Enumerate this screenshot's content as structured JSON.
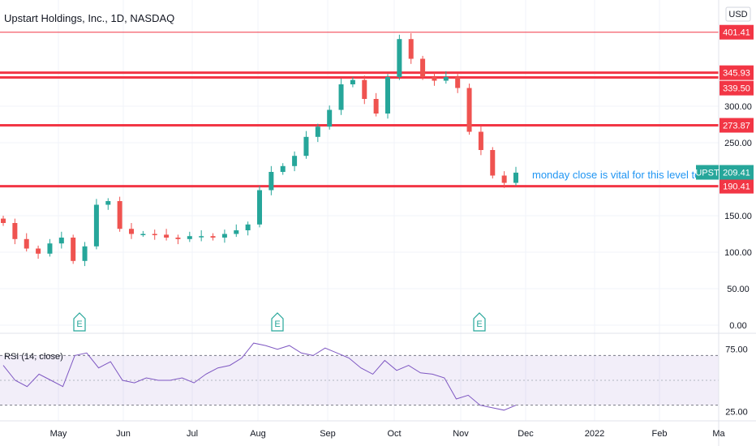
{
  "header": {
    "title": "Upstart Holdings, Inc., 1D, NASDAQ",
    "currency": "USD"
  },
  "colors": {
    "up": "#26a69a",
    "down": "#ef5350",
    "level": "#f23645",
    "rsi": "#7e57c2",
    "annotation": "#2196f3"
  },
  "chart_data": [
    {
      "type": "candlestick",
      "title": "Upstart Holdings, Inc., 1D, NASDAQ",
      "ylim": [
        0,
        430
      ],
      "y_ticks": [
        "0.00",
        "50.00",
        "100.00",
        "150.00",
        "250.00",
        "300.00"
      ],
      "x_ticks": [
        "May",
        "Jun",
        "Jul",
        "Aug",
        "Sep",
        "Oct",
        "Nov",
        "Dec",
        "2022",
        "Feb",
        "Ma"
      ],
      "grid": true,
      "ticker": "UPST",
      "last_price": "209.41",
      "levels": [
        {
          "value": 401.41,
          "label": "401.41",
          "thickness": "thin"
        },
        {
          "value": 345.93,
          "label": "345.93",
          "thickness": "thick"
        },
        {
          "value": 339.5,
          "label": "339.50",
          "thickness": "thick"
        },
        {
          "value": 273.87,
          "label": "273.87",
          "thickness": "thick"
        },
        {
          "value": 190.41,
          "label": "190.41",
          "thickness": "thick"
        }
      ],
      "earnings_markers": [
        "E",
        "E",
        "E"
      ],
      "annotation": "monday close is vital for this level to ho",
      "series": [
        {
          "name": "UPST",
          "x": [
            "Apr 20",
            "Apr 25",
            "Apr 30",
            "May 5",
            "May 10",
            "May 15",
            "May 20",
            "May 25",
            "May 30",
            "Jun 4",
            "Jun 9",
            "Jun 14",
            "Jun 19",
            "Jun 24",
            "Jun 29",
            "Jul 4",
            "Jul 9",
            "Jul 14",
            "Jul 19",
            "Jul 24",
            "Jul 29",
            "Aug 3",
            "Aug 8",
            "Aug 13",
            "Aug 18",
            "Aug 23",
            "Aug 28",
            "Sep 2",
            "Sep 7",
            "Sep 12",
            "Sep 17",
            "Sep 22",
            "Sep 27",
            "Oct 2",
            "Oct 7",
            "Oct 12",
            "Oct 17",
            "Oct 22",
            "Oct 27",
            "Nov 1",
            "Nov 6",
            "Nov 11",
            "Nov 16",
            "Nov 21",
            "Nov 26"
          ],
          "close": [
            140,
            118,
            105,
            98,
            112,
            120,
            88,
            108,
            165,
            170,
            132,
            125,
            125,
            124,
            120,
            118,
            122,
            122,
            120,
            125,
            130,
            138,
            185,
            210,
            218,
            232,
            258,
            272,
            295,
            330,
            336,
            310,
            290,
            340,
            392,
            365,
            340,
            335,
            340,
            325,
            265,
            240,
            205,
            195,
            209
          ]
        }
      ]
    },
    {
      "type": "line",
      "title": "RSI (14, close)",
      "ylim": [
        20,
        82
      ],
      "y_ticks": [
        "75.00",
        "25.00"
      ],
      "band": [
        30,
        70
      ],
      "series": [
        {
          "name": "RSI (14, close)",
          "values": [
            62,
            50,
            45,
            55,
            50,
            45,
            70,
            72,
            60,
            65,
            50,
            48,
            52,
            50,
            50,
            52,
            48,
            55,
            60,
            62,
            68,
            80,
            78,
            75,
            78,
            72,
            70,
            76,
            72,
            68,
            60,
            55,
            66,
            58,
            62,
            56,
            55,
            52,
            35,
            38,
            30,
            28,
            26,
            30
          ]
        }
      ]
    }
  ]
}
